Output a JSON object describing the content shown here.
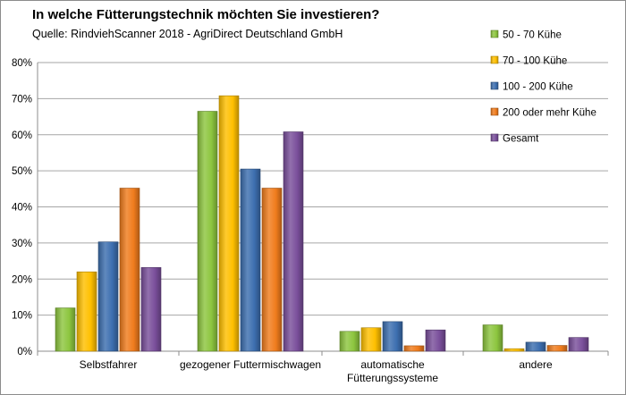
{
  "chart_data": {
    "type": "bar",
    "title": "In welche Fütterungstechnik möchten Sie investieren?",
    "subtitle": "Quelle: RindviehScanner 2018 - AgriDirect Deutschland GmbH",
    "categories": [
      [
        "Selbstfahrer"
      ],
      [
        "gezogener Futtermischwagen"
      ],
      [
        "automatische",
        "Fütterungssysteme"
      ],
      [
        "andere"
      ]
    ],
    "series": [
      {
        "name": "50 - 70 Kühe",
        "color": "#8dc63f",
        "values": [
          12,
          66.5,
          5.5,
          7.3
        ]
      },
      {
        "name": "70 - 100 Kühe",
        "color": "#ffc000",
        "values": [
          22,
          70.8,
          6.5,
          0.7
        ]
      },
      {
        "name": "100 - 200 Kühe",
        "color": "#3d6fb0",
        "values": [
          30.3,
          50.5,
          8.2,
          2.5
        ]
      },
      {
        "name": "200 oder mehr Kühe",
        "color": "#f07c1d",
        "values": [
          45.2,
          45.2,
          1.5,
          1.6
        ]
      },
      {
        "name": "Gesamt",
        "color": "#7a4f9b",
        "values": [
          23.2,
          60.8,
          5.9,
          3.8
        ]
      }
    ],
    "y_ticks": [
      "0%",
      "10%",
      "20%",
      "30%",
      "40%",
      "50%",
      "60%",
      "70%",
      "80%"
    ],
    "ylim": [
      0,
      80
    ],
    "legend_position": "right",
    "grid": true
  }
}
